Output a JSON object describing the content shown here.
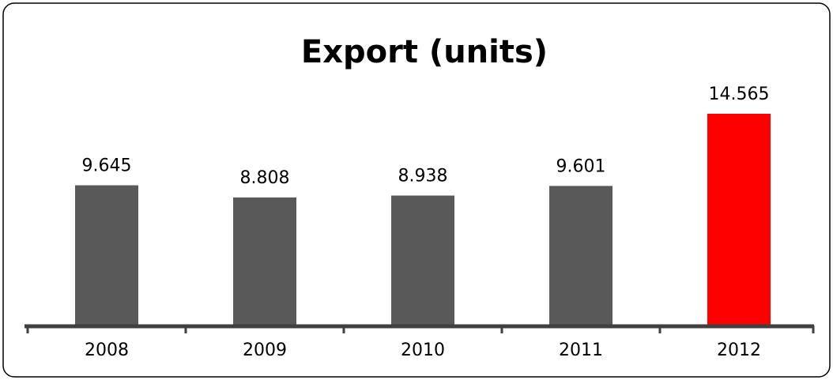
{
  "chart_data": {
    "type": "bar",
    "title": "Export (units)",
    "categories": [
      "2008",
      "2009",
      "2010",
      "2011",
      "2012"
    ],
    "values": [
      9.645,
      8.808,
      8.938,
      9.601,
      14.565
    ],
    "colors": [
      "#595959",
      "#595959",
      "#595959",
      "#595959",
      "#ff0000"
    ]
  }
}
